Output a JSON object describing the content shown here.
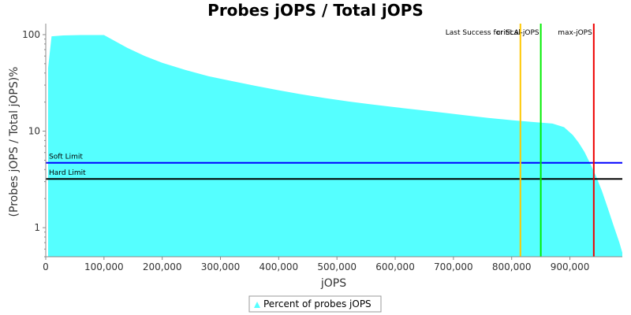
{
  "chart_data": {
    "type": "area",
    "title": "Probes jOPS / Total jOPS",
    "xlabel": "jOPS",
    "ylabel": "(Probes jOPS / Total jOPS)%",
    "y_scale": "log",
    "xlim": [
      0,
      990000
    ],
    "ylim": [
      0.5,
      130
    ],
    "x_ticks": [
      0,
      100000,
      200000,
      300000,
      400000,
      500000,
      600000,
      700000,
      800000,
      900000
    ],
    "x_tick_labels": [
      "0",
      "100,000",
      "200,000",
      "300,000",
      "400,000",
      "500,000",
      "600,000",
      "700,000",
      "800,000",
      "900,000"
    ],
    "y_ticks": [
      1,
      10,
      100
    ],
    "y_tick_labels": [
      "1",
      "10",
      "100"
    ],
    "grid": false,
    "legend_position": "bottom-center",
    "series": [
      {
        "name": "Percent of probes jOPS",
        "color": "#55ffff",
        "x": [
          4000,
          10000,
          30000,
          60000,
          100000,
          120000,
          140000,
          170000,
          200000,
          240000,
          280000,
          320000,
          360000,
          400000,
          440000,
          480000,
          520000,
          560000,
          600000,
          640000,
          680000,
          720000,
          760000,
          800000,
          840000,
          870000,
          890000,
          905000,
          915000,
          925000,
          935000,
          945000,
          955000,
          965000,
          975000,
          985000,
          990000
        ],
        "y": [
          45,
          96,
          98,
          99,
          99,
          85,
          73,
          60,
          51,
          43,
          37,
          33,
          29.5,
          26.5,
          24,
          22,
          20.3,
          18.9,
          17.7,
          16.6,
          15.6,
          14.6,
          13.7,
          13,
          12.4,
          12,
          11,
          9.1,
          7.6,
          6.1,
          4.6,
          3.4,
          2.4,
          1.6,
          1.05,
          0.7,
          0.55
        ]
      }
    ],
    "horizontal_lines": [
      {
        "label": "Soft Limit",
        "y": 4.7,
        "color": "#0000ff"
      },
      {
        "label": "Hard Limit",
        "y": 3.2,
        "color": "#000000"
      }
    ],
    "vertical_lines": [
      {
        "label": "Last Success for SLA",
        "x": 815000,
        "color": "#ffc800"
      },
      {
        "label": "critical-jOPS",
        "x": 850000,
        "color": "#00ee00"
      },
      {
        "label": "max-jOPS",
        "x": 941000,
        "color": "#ee0000"
      }
    ]
  }
}
